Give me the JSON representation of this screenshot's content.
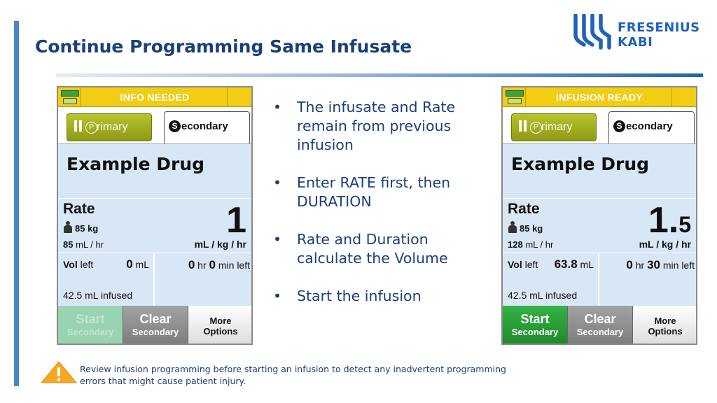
{
  "slide": {
    "title": "Continue Programming Same Infusate",
    "logo": {
      "line1": "FRESENIUS",
      "line2": "KABI"
    },
    "bullets": [
      "The infusate and Rate remain from previous infusion",
      "Enter RATE first, then DURATION",
      "Rate and Duration calculate the Volume",
      "Start the infusion"
    ],
    "warning": "Review infusion programming before starting an infusion to detect any inadvertent programming errors that might cause patient injury."
  },
  "pumps": [
    {
      "status": "INFO NEEDED",
      "primary_tab": "rimary",
      "primary_letter": "P",
      "secondary_tab": "econdary",
      "secondary_letter": "S",
      "drug": "Example Drug",
      "rate_label": "Rate",
      "weight": "85 kg",
      "flow_value": "85",
      "flow_unit": "mL / hr",
      "rate_whole": "1",
      "rate_decimal": "",
      "rate_unit": "mL / kg / hr",
      "vol_label_bold": "Vol",
      "vol_label": "left",
      "vol_value": "0",
      "vol_unit": "mL",
      "dur_hr": "0",
      "dur_hr_unit": "hr",
      "dur_min": "0",
      "dur_min_unit": "min left",
      "infused": "42.5 mL infused",
      "start_label": "Start",
      "start_sub": "Secondary",
      "clear_label": "Clear",
      "clear_sub": "Secondary",
      "more_label": "More",
      "more_sub": "Options"
    },
    {
      "status": "INFUSION READY",
      "primary_tab": "rimary",
      "primary_letter": "P",
      "secondary_tab": "econdary",
      "secondary_letter": "S",
      "drug": "Example Drug",
      "rate_label": "Rate",
      "weight": "85 kg",
      "flow_value": "128",
      "flow_unit": "mL / hr",
      "rate_whole": "1.",
      "rate_decimal": "5",
      "rate_unit": "mL / kg / hr",
      "vol_label_bold": "Vol",
      "vol_label": "left",
      "vol_value": "63.8",
      "vol_unit": "mL",
      "dur_hr": "0",
      "dur_hr_unit": "hr",
      "dur_min": "30",
      "dur_min_unit": "min left",
      "infused": "42.5 mL infused",
      "start_label": "Start",
      "start_sub": "Secondary",
      "clear_label": "Clear",
      "clear_sub": "Secondary",
      "more_label": "More",
      "more_sub": "Options"
    }
  ],
  "colors": {
    "title": "#1c3f7a",
    "status_bar": "#f3cc14",
    "panel_bg": "#d8e7f6",
    "start_enabled": "#1e8a2a",
    "start_disabled": "#99d3b2",
    "warning_triangle": "#f5a623"
  }
}
